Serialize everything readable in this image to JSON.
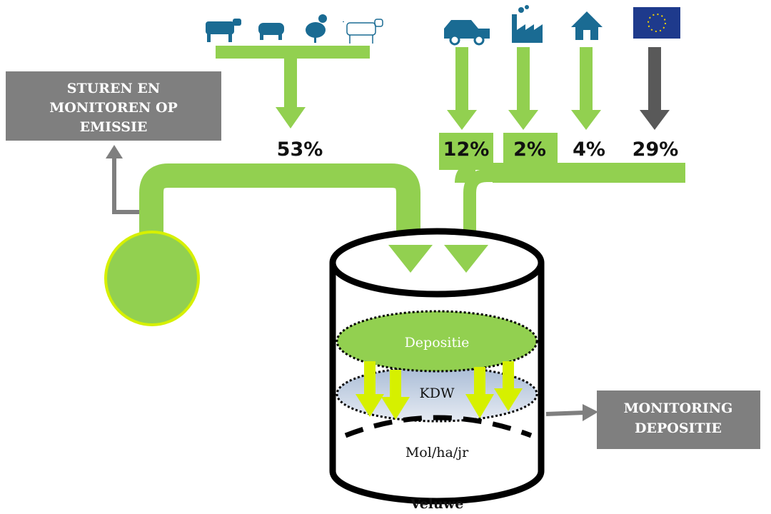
{
  "emission_box": {
    "lines": [
      "STUREN EN",
      "MONITOREN OP",
      "EMISSIE"
    ]
  },
  "sources": [
    {
      "label": "53%"
    },
    {
      "label": "12%"
    },
    {
      "label": "2%"
    },
    {
      "label": "4%"
    },
    {
      "label": "29%"
    }
  ],
  "reservoir": {
    "deposition": "Depositie",
    "threshold": "KDW",
    "unit": "Mol/ha/jr",
    "name": "Veluwe"
  },
  "monitoring_box": {
    "lines": [
      "MONITORING",
      "DEPOSITIE"
    ]
  }
}
